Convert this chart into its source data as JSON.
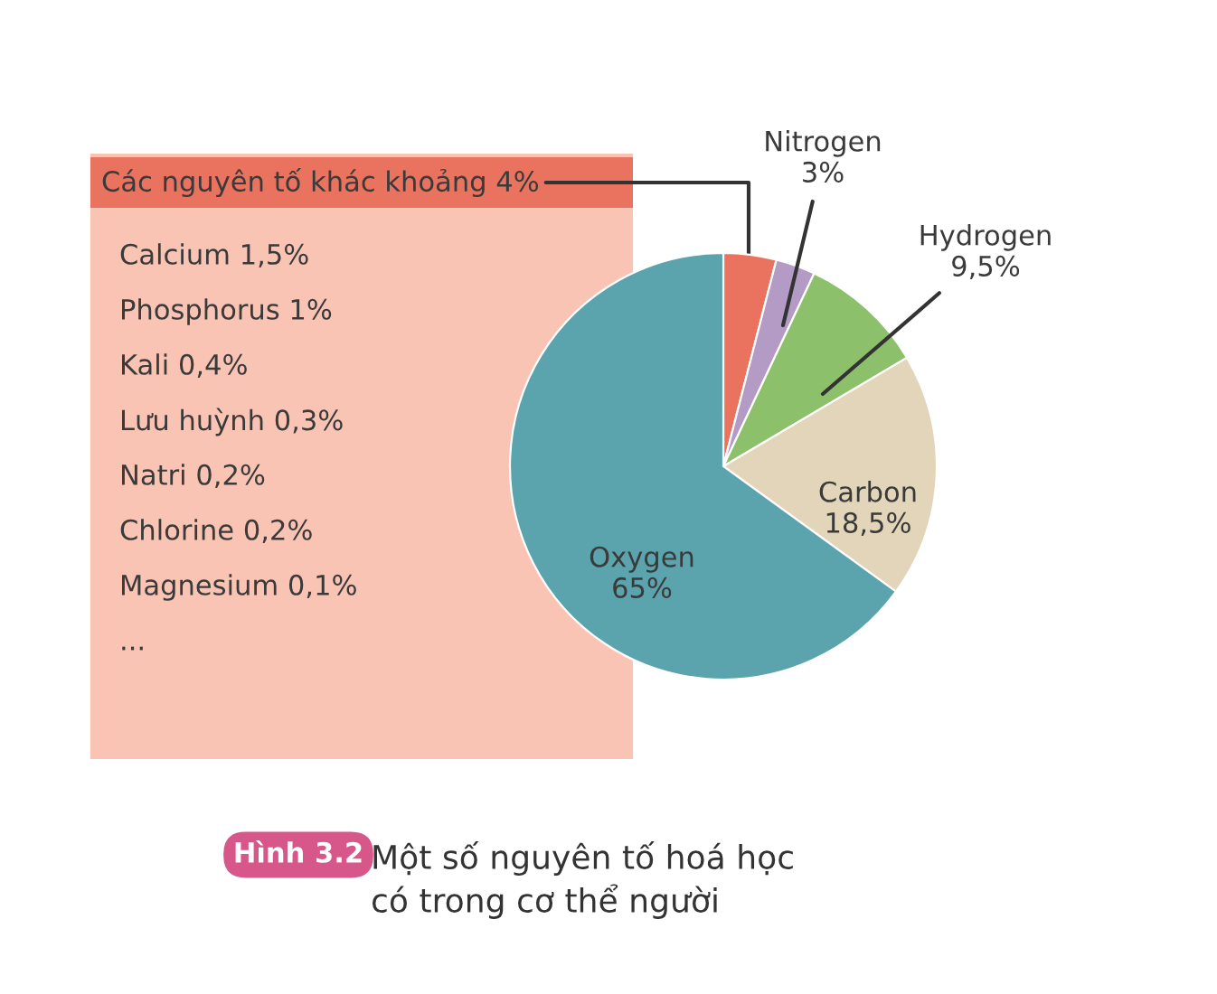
{
  "chart_data": {
    "type": "pie",
    "title": "Hình 3.2",
    "subtitle": "Một số nguyên tố hoá học\ncó trong cơ thể người",
    "categories": [
      "Các nguyên tố khác khoảng",
      "Nitrogen",
      "Hydrogen",
      "Carbon",
      "Oxygen"
    ],
    "values": [
      4,
      3,
      9.5,
      18.5,
      65
    ],
    "value_labels": [
      "4%",
      "3%",
      "9,5%",
      "18,5%",
      "65%"
    ],
    "colors": [
      "#e9735f",
      "#b39bc6",
      "#8dc06b",
      "#e3d5b9",
      "#5ba4ad"
    ],
    "annotations": [
      "Calcium 1,5%",
      "Phosphorus 1%",
      "Kali 0,4%",
      "Lưu huỳnh 0,3%",
      "Natri 0,2%",
      "Chlorine 0,2%",
      "Magnesium 0,1%",
      "..."
    ],
    "legend": false
  }
}
